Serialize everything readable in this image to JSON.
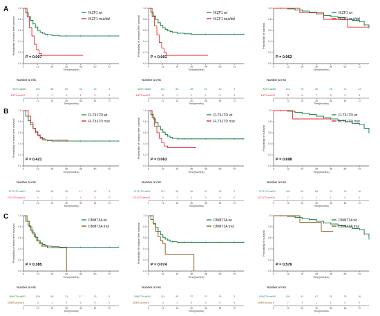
{
  "colors": {
    "wt": "#2e8b57",
    "ikzf1_mut": "#e8262a",
    "flt3_mut": "#e8262a",
    "dnmt3a_mut": "#8b5a16",
    "axis": "#555555",
    "text": "#222222"
  },
  "common": {
    "time_label": "Time(months)",
    "risk_label": "Number at risk",
    "x_ticks": [
      0,
      12,
      24,
      36,
      48,
      60,
      72
    ],
    "y_ticks": [
      "0.0",
      "0.2",
      "0.4",
      "0.6",
      "0.8",
      "1.0"
    ]
  },
  "rows": [
    {
      "letter": "A",
      "legend": [
        "IKZF1 wt",
        "IKZF1 mut/del"
      ],
      "mut_color_key": "ikzf1_mut",
      "risk_names": [
        "IKZF1=wt",
        "IKZF1=mut"
      ]
    },
    {
      "letter": "B",
      "legend": [
        "FLT3-ITD wt",
        "FLT3-ITD mut"
      ],
      "mut_color_key": "flt3_mut",
      "risk_names": [
        "FLT3-ITD=wt",
        "FLT3-ITD=mut"
      ]
    },
    {
      "letter": "C",
      "legend": [
        "DNMT3A wt",
        "DNMT3A mut"
      ],
      "mut_color_key": "dnmt3a_mut",
      "risk_names": [
        "DNMT3A=wt",
        "DNMT3A=mut"
      ]
    }
  ],
  "chart_data": [
    {
      "type": "line",
      "row": "A",
      "col": 0,
      "ylabel": "Probability of event-free survival",
      "xlabel": "Time(months)",
      "xlim": [
        0,
        80
      ],
      "ylim": [
        0,
        1
      ],
      "p_value": "P = 0.007",
      "series": [
        {
          "name": "IKZF1 wt",
          "x": [
            0,
            2,
            4,
            6,
            8,
            10,
            12,
            14,
            16,
            18,
            20,
            24,
            30,
            36,
            48,
            60,
            72,
            80
          ],
          "y": [
            1,
            0.92,
            0.85,
            0.78,
            0.72,
            0.66,
            0.6,
            0.57,
            0.55,
            0.53,
            0.52,
            0.51,
            0.5,
            0.5,
            0.5,
            0.5,
            0.5,
            0.5
          ]
        },
        {
          "name": "IKZF1 mut/del",
          "x": [
            0,
            3,
            5,
            7,
            9,
            11,
            13,
            15,
            50
          ],
          "y": [
            1,
            0.85,
            0.65,
            0.5,
            0.35,
            0.25,
            0.18,
            0.15,
            0.15
          ]
        }
      ],
      "risk_table": {
        "times": [
          0,
          12,
          24,
          36,
          48,
          60,
          72
        ],
        "rows": [
          [
            168,
            104,
            85,
            56,
            34,
            13,
            4
          ],
          [
            13,
            9,
            1,
            1,
            1,
            0,
            0
          ]
        ]
      }
    },
    {
      "type": "line",
      "row": "A",
      "col": 1,
      "ylabel": "Probability of relapse-free survival",
      "xlabel": "Time(months)",
      "xlim": [
        0,
        80
      ],
      "ylim": [
        0,
        1
      ],
      "p_value": "P < 0.001",
      "series": [
        {
          "name": "IKZF1 wt",
          "x": [
            0,
            2,
            4,
            6,
            8,
            10,
            12,
            14,
            16,
            18,
            20,
            24,
            30,
            36,
            48,
            60,
            72,
            80
          ],
          "y": [
            1,
            0.93,
            0.86,
            0.8,
            0.74,
            0.69,
            0.65,
            0.62,
            0.6,
            0.58,
            0.57,
            0.55,
            0.54,
            0.53,
            0.53,
            0.53,
            0.53,
            0.53
          ]
        },
        {
          "name": "IKZF1 mut/del",
          "x": [
            0,
            3,
            5,
            7,
            9,
            11,
            13,
            15,
            50
          ],
          "y": [
            1,
            0.85,
            0.68,
            0.52,
            0.38,
            0.28,
            0.2,
            0.15,
            0.15
          ]
        }
      ],
      "risk_table": {
        "times": [
          0,
          12,
          24,
          36,
          48,
          60,
          72
        ],
        "rows": [
          [
            168,
            113,
            82,
            38,
            21,
            10,
            4
          ],
          [
            13,
            5,
            1,
            1,
            1,
            0,
            0
          ]
        ]
      }
    },
    {
      "type": "line",
      "row": "A",
      "col": 2,
      "ylabel": "Probability of survival",
      "xlabel": "Time(months)",
      "xlim": [
        0,
        80
      ],
      "ylim": [
        0,
        1
      ],
      "p_value": "P = 0.952",
      "series": [
        {
          "name": "IKZF1 wt",
          "x": [
            0,
            6,
            12,
            18,
            24,
            30,
            36,
            42,
            48,
            54,
            60,
            66,
            72,
            76,
            80
          ],
          "y": [
            1,
            1,
            0.99,
            0.97,
            0.95,
            0.93,
            0.9,
            0.87,
            0.85,
            0.83,
            0.8,
            0.78,
            0.76,
            0.7,
            0.65
          ]
        },
        {
          "name": "IKZF1 mut/del",
          "x": [
            0,
            20,
            22,
            40,
            42,
            60,
            62,
            80
          ],
          "y": [
            1,
            1,
            0.92,
            0.92,
            0.8,
            0.8,
            0.66,
            0.66
          ]
        }
      ],
      "risk_table": {
        "times": [
          0,
          12,
          24,
          36,
          48,
          60,
          72
        ],
        "rows": [
          [
            168,
            141,
            99,
            53,
            26,
            22,
            14
          ],
          [
            13,
            11,
            6,
            7,
            6,
            5,
            3
          ]
        ]
      }
    },
    {
      "type": "line",
      "row": "B",
      "col": 0,
      "ylabel": "Probability of event-free survival",
      "xlabel": "Time(months)",
      "xlim": [
        0,
        80
      ],
      "ylim": [
        0,
        1
      ],
      "p_value": "P = 0.421",
      "series": [
        {
          "name": "FLT3-ITD wt",
          "x": [
            0,
            2,
            4,
            6,
            8,
            10,
            12,
            14,
            16,
            18,
            20,
            24,
            30,
            36,
            48,
            60,
            72,
            80
          ],
          "y": [
            1,
            0.9,
            0.82,
            0.75,
            0.68,
            0.62,
            0.56,
            0.52,
            0.49,
            0.47,
            0.46,
            0.45,
            0.45,
            0.45,
            0.45,
            0.45,
            0.45,
            0.45
          ]
        },
        {
          "name": "FLT3-ITD mut",
          "x": [
            0,
            4,
            6,
            8,
            10,
            12,
            14,
            16,
            38
          ],
          "y": [
            1,
            0.9,
            0.78,
            0.68,
            0.6,
            0.55,
            0.5,
            0.47,
            0.47
          ]
        }
      ],
      "risk_table": {
        "times": [
          0,
          12,
          24,
          36,
          48,
          60,
          72
        ],
        "rows": [
          [
            151,
            106,
            56,
            36,
            17,
            12,
            5
          ],
          [
            15,
            4,
            1,
            1,
            0,
            0,
            0
          ]
        ]
      }
    },
    {
      "type": "line",
      "row": "B",
      "col": 1,
      "ylabel": "Probability of relapse-free survival",
      "xlabel": "Time(months)",
      "xlim": [
        0,
        80
      ],
      "ylim": [
        0,
        1
      ],
      "p_value": "P = 0.063",
      "series": [
        {
          "name": "FLT3-ITD wt",
          "x": [
            0,
            2,
            4,
            6,
            8,
            10,
            12,
            14,
            16,
            18,
            20,
            24,
            30,
            36,
            48,
            60,
            72,
            80
          ],
          "y": [
            1,
            0.93,
            0.85,
            0.78,
            0.72,
            0.66,
            0.61,
            0.57,
            0.54,
            0.52,
            0.5,
            0.49,
            0.49,
            0.49,
            0.49,
            0.49,
            0.49,
            0.49
          ]
        },
        {
          "name": "FLT3-ITD mut",
          "x": [
            0,
            3,
            5,
            7,
            9,
            11,
            13,
            16,
            40
          ],
          "y": [
            1,
            0.88,
            0.72,
            0.6,
            0.5,
            0.42,
            0.36,
            0.33,
            0.33
          ]
        }
      ],
      "risk_table": {
        "times": [
          0,
          12,
          24,
          36,
          48,
          60,
          72
        ],
        "rows": [
          [
            151,
            114,
            82,
            36,
            22,
            16,
            5
          ],
          [
            15,
            4,
            1,
            1,
            0,
            0,
            0
          ]
        ]
      }
    },
    {
      "type": "line",
      "row": "B",
      "col": 2,
      "ylabel": "Probability of survival",
      "xlabel": "Time(months)",
      "xlim": [
        0,
        80
      ],
      "ylim": [
        0,
        1
      ],
      "p_value": "P = 0.698",
      "series": [
        {
          "name": "FLT3-ITD wt",
          "x": [
            0,
            6,
            12,
            18,
            24,
            30,
            36,
            42,
            48,
            54,
            60,
            66,
            72,
            76,
            80
          ],
          "y": [
            1,
            1,
            0.99,
            0.97,
            0.95,
            0.93,
            0.9,
            0.87,
            0.85,
            0.82,
            0.8,
            0.77,
            0.75,
            0.68,
            0.6
          ]
        },
        {
          "name": "FLT3-ITD mut",
          "x": [
            0,
            14,
            16,
            40,
            42,
            48
          ],
          "y": [
            1,
            1,
            0.85,
            0.85,
            0.85,
            0.85
          ]
        }
      ],
      "risk_table": {
        "times": [
          0,
          12,
          24,
          36,
          48,
          60,
          72
        ],
        "rows": [
          [
            151,
            140,
            93,
            65,
            34,
            25,
            16
          ],
          [
            15,
            7,
            1,
            1,
            1,
            0,
            0
          ]
        ]
      }
    },
    {
      "type": "line",
      "row": "C",
      "col": 0,
      "ylabel": "Probability of event-free survival",
      "xlabel": "Time(months)",
      "xlim": [
        0,
        80
      ],
      "ylim": [
        0,
        1
      ],
      "p_value": "P = 0.385",
      "series": [
        {
          "name": "DNMT3A wt",
          "x": [
            0,
            2,
            4,
            6,
            8,
            10,
            12,
            14,
            16,
            18,
            20,
            24,
            30,
            36,
            48,
            60,
            72,
            80
          ],
          "y": [
            1,
            0.9,
            0.82,
            0.74,
            0.67,
            0.61,
            0.55,
            0.51,
            0.48,
            0.46,
            0.45,
            0.44,
            0.43,
            0.43,
            0.43,
            0.43,
            0.43,
            0.43
          ]
        },
        {
          "name": "DNMT3A mut",
          "x": [
            0,
            3,
            5,
            7,
            9,
            11,
            13,
            15,
            20,
            30,
            36,
            36.1
          ],
          "y": [
            1,
            0.9,
            0.8,
            0.7,
            0.62,
            0.55,
            0.5,
            0.45,
            0.42,
            0.42,
            0.42,
            0
          ]
        }
      ],
      "risk_table": {
        "times": [
          0,
          12,
          24,
          36,
          48,
          60,
          72
        ],
        "rows": [
          [
            153,
            109,
            56,
            31,
            17,
            13,
            5
          ],
          [
            9,
            4,
            1,
            0,
            0,
            0,
            0
          ]
        ]
      }
    },
    {
      "type": "line",
      "row": "C",
      "col": 1,
      "ylabel": "Probability of relapse-free survival",
      "xlabel": "Time(months)",
      "xlim": [
        0,
        80
      ],
      "ylim": [
        0,
        1
      ],
      "p_value": "P = 0.074",
      "series": [
        {
          "name": "DNMT3A wt",
          "x": [
            0,
            2,
            4,
            6,
            8,
            10,
            12,
            14,
            16,
            18,
            20,
            24,
            30,
            36,
            48,
            60,
            72,
            80
          ],
          "y": [
            1,
            0.93,
            0.86,
            0.79,
            0.72,
            0.66,
            0.61,
            0.58,
            0.56,
            0.54,
            0.53,
            0.52,
            0.52,
            0.52,
            0.52,
            0.52,
            0.52,
            0.52
          ]
        },
        {
          "name": "DNMT3A mut",
          "x": [
            0,
            4,
            6,
            8,
            10,
            12,
            14,
            26,
            26.1,
            38,
            38.1
          ],
          "y": [
            1,
            0.85,
            0.72,
            0.62,
            0.55,
            0.5,
            0.3,
            0.3,
            0.3,
            0.3,
            0
          ]
        }
      ],
      "risk_table": {
        "times": [
          0,
          12,
          24,
          36,
          48,
          60,
          72
        ],
        "rows": [
          [
            160,
            114,
            82,
            37,
            22,
            16,
            5
          ],
          [
            9,
            4,
            1,
            0,
            0,
            0,
            0
          ]
        ]
      }
    },
    {
      "type": "line",
      "row": "C",
      "col": 2,
      "ylabel": "Probability of survival",
      "xlabel": "Time(months)",
      "xlim": [
        0,
        80
      ],
      "ylim": [
        0,
        1
      ],
      "p_value": "P = 0.576",
      "series": [
        {
          "name": "DNMT3A wt",
          "x": [
            0,
            6,
            12,
            18,
            24,
            30,
            36,
            42,
            48,
            54,
            60,
            66,
            72,
            76,
            80
          ],
          "y": [
            1,
            1,
            0.99,
            0.97,
            0.95,
            0.93,
            0.9,
            0.87,
            0.85,
            0.82,
            0.8,
            0.77,
            0.75,
            0.67,
            0.58
          ]
        },
        {
          "name": "DNMT3A mut",
          "x": [
            0,
            20,
            22,
            38,
            40,
            50
          ],
          "y": [
            1,
            1,
            0.88,
            0.88,
            0.72,
            0.72
          ]
        }
      ],
      "risk_table": {
        "times": [
          0,
          12,
          24,
          36,
          48,
          60,
          72
        ],
        "rows": [
          [
            160,
            146,
            91,
            67,
            35,
            25,
            16
          ],
          [
            9,
            7,
            3,
            1,
            1,
            0,
            0
          ]
        ]
      }
    }
  ]
}
